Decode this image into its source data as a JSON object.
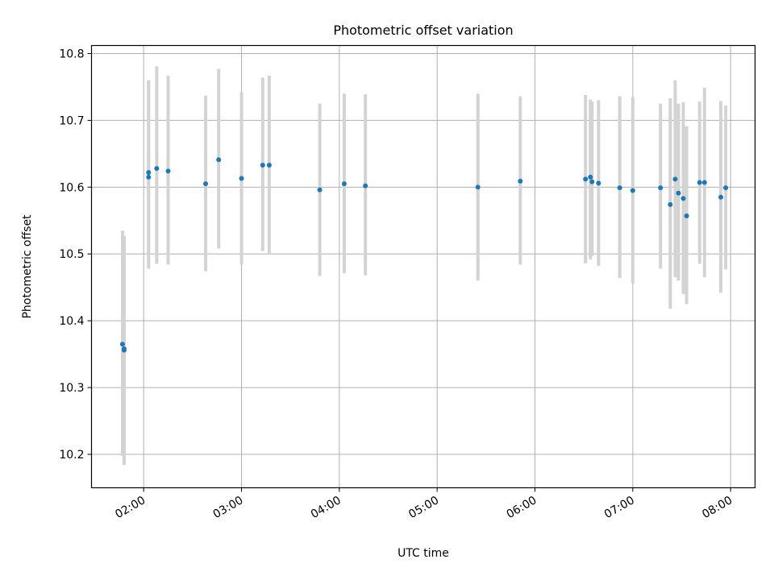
{
  "chart_data": {
    "type": "scatter",
    "title": "Photometric offset variation",
    "xlabel": "UTC time",
    "ylabel": "Photometric offset",
    "x_tick_labels": [
      "02:00",
      "03:00",
      "04:00",
      "05:00",
      "06:00",
      "07:00",
      "08:00"
    ],
    "y_tick_labels": [
      "10.2",
      "10.3",
      "10.4",
      "10.5",
      "10.6",
      "10.7",
      "10.8"
    ],
    "x_ticks": [
      "02:00",
      "03:00",
      "04:00",
      "05:00",
      "06:00",
      "07:00",
      "08:00"
    ],
    "y_ticks": [
      10.2,
      10.3,
      10.4,
      10.5,
      10.6,
      10.7,
      10.8
    ],
    "xlim": [
      "01:28",
      "08:15"
    ],
    "ylim": [
      10.15,
      10.812
    ],
    "grid": true,
    "point_color": "#1f77b4",
    "errorbar_color": "#d3d3d3",
    "points": [
      {
        "t": "01:47",
        "y": 10.365,
        "low": 10.198,
        "high": 10.535
      },
      {
        "t": "01:48",
        "y": 10.356,
        "low": 10.184,
        "high": 10.527
      },
      {
        "t": "01:48",
        "y": 10.358,
        "low": 10.19,
        "high": 10.527
      },
      {
        "t": "02:03",
        "y": 10.615,
        "low": 10.478,
        "high": 10.76
      },
      {
        "t": "02:03",
        "y": 10.622,
        "low": 10.484,
        "high": 10.76
      },
      {
        "t": "02:08",
        "y": 10.628,
        "low": 10.485,
        "high": 10.781
      },
      {
        "t": "02:15",
        "y": 10.624,
        "low": 10.484,
        "high": 10.767
      },
      {
        "t": "02:38",
        "y": 10.605,
        "low": 10.474,
        "high": 10.737
      },
      {
        "t": "02:46",
        "y": 10.641,
        "low": 10.508,
        "high": 10.777
      },
      {
        "t": "03:00",
        "y": 10.613,
        "low": 10.484,
        "high": 10.742
      },
      {
        "t": "03:13",
        "y": 10.633,
        "low": 10.504,
        "high": 10.764
      },
      {
        "t": "03:17",
        "y": 10.633,
        "low": 10.5,
        "high": 10.767
      },
      {
        "t": "03:48",
        "y": 10.596,
        "low": 10.467,
        "high": 10.725
      },
      {
        "t": "04:03",
        "y": 10.605,
        "low": 10.471,
        "high": 10.74
      },
      {
        "t": "04:16",
        "y": 10.602,
        "low": 10.468,
        "high": 10.739
      },
      {
        "t": "05:25",
        "y": 10.6,
        "low": 10.46,
        "high": 10.74
      },
      {
        "t": "05:51",
        "y": 10.609,
        "low": 10.484,
        "high": 10.736
      },
      {
        "t": "06:31",
        "y": 10.612,
        "low": 10.486,
        "high": 10.738
      },
      {
        "t": "06:34",
        "y": 10.615,
        "low": 10.492,
        "high": 10.731
      },
      {
        "t": "06:35",
        "y": 10.608,
        "low": 10.497,
        "high": 10.728
      },
      {
        "t": "06:39",
        "y": 10.606,
        "low": 10.482,
        "high": 10.73
      },
      {
        "t": "06:52",
        "y": 10.599,
        "low": 10.464,
        "high": 10.736
      },
      {
        "t": "07:00",
        "y": 10.595,
        "low": 10.456,
        "high": 10.735
      },
      {
        "t": "07:17",
        "y": 10.599,
        "low": 10.478,
        "high": 10.725
      },
      {
        "t": "07:23",
        "y": 10.574,
        "low": 10.418,
        "high": 10.733
      },
      {
        "t": "07:26",
        "y": 10.612,
        "low": 10.465,
        "high": 10.76
      },
      {
        "t": "07:28",
        "y": 10.591,
        "low": 10.46,
        "high": 10.725
      },
      {
        "t": "07:31",
        "y": 10.583,
        "low": 10.44,
        "high": 10.727
      },
      {
        "t": "07:33",
        "y": 10.557,
        "low": 10.425,
        "high": 10.691
      },
      {
        "t": "07:41",
        "y": 10.607,
        "low": 10.485,
        "high": 10.728
      },
      {
        "t": "07:44",
        "y": 10.607,
        "low": 10.465,
        "high": 10.749
      },
      {
        "t": "07:54",
        "y": 10.585,
        "low": 10.442,
        "high": 10.729
      },
      {
        "t": "07:57",
        "y": 10.599,
        "low": 10.477,
        "high": 10.722
      }
    ]
  }
}
